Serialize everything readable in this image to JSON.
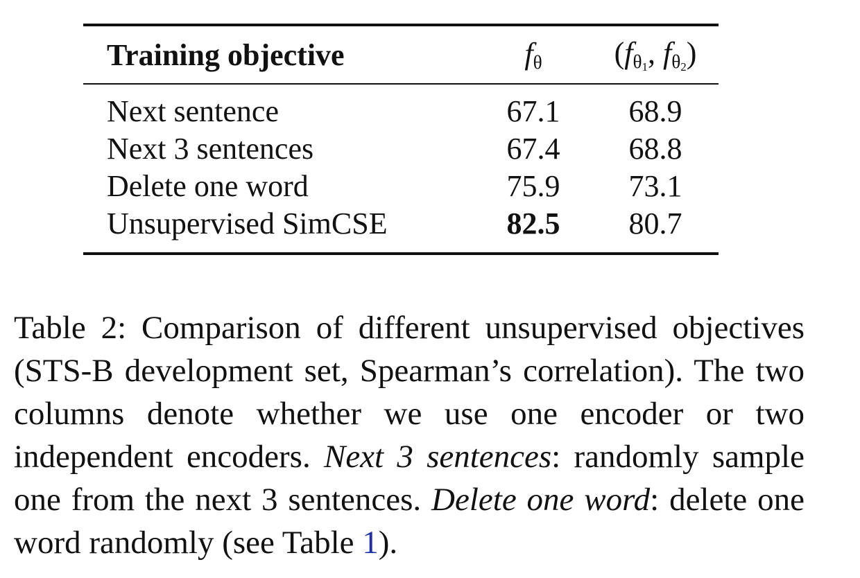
{
  "table": {
    "headers": {
      "objective": "Training objective",
      "single": "fθ",
      "pair": "(fθ1, fθ2)"
    },
    "rows": [
      {
        "objective": "Next sentence",
        "single": "67.1",
        "pair": "68.9"
      },
      {
        "objective": "Next 3 sentences",
        "single": "67.4",
        "pair": "68.8"
      },
      {
        "objective": "Delete one word",
        "single": "75.9",
        "pair": "73.1"
      },
      {
        "objective": "Unsupervised SimCSE",
        "single": "82.5",
        "pair": "80.7"
      }
    ]
  },
  "caption": {
    "lead": "Table 2: Comparison of different unsupervised objectives (STS-B development set, Spearman’s correlation). The two columns denote whether we use one encoder or two independent encoders.",
    "term1": "Next 3 sentences",
    "text1": ": randomly sample one from the next 3 sentences.",
    "term2": "Delete one word",
    "text2": ": delete one word randomly (see Table ",
    "ref": "1",
    "tail": ")."
  }
}
